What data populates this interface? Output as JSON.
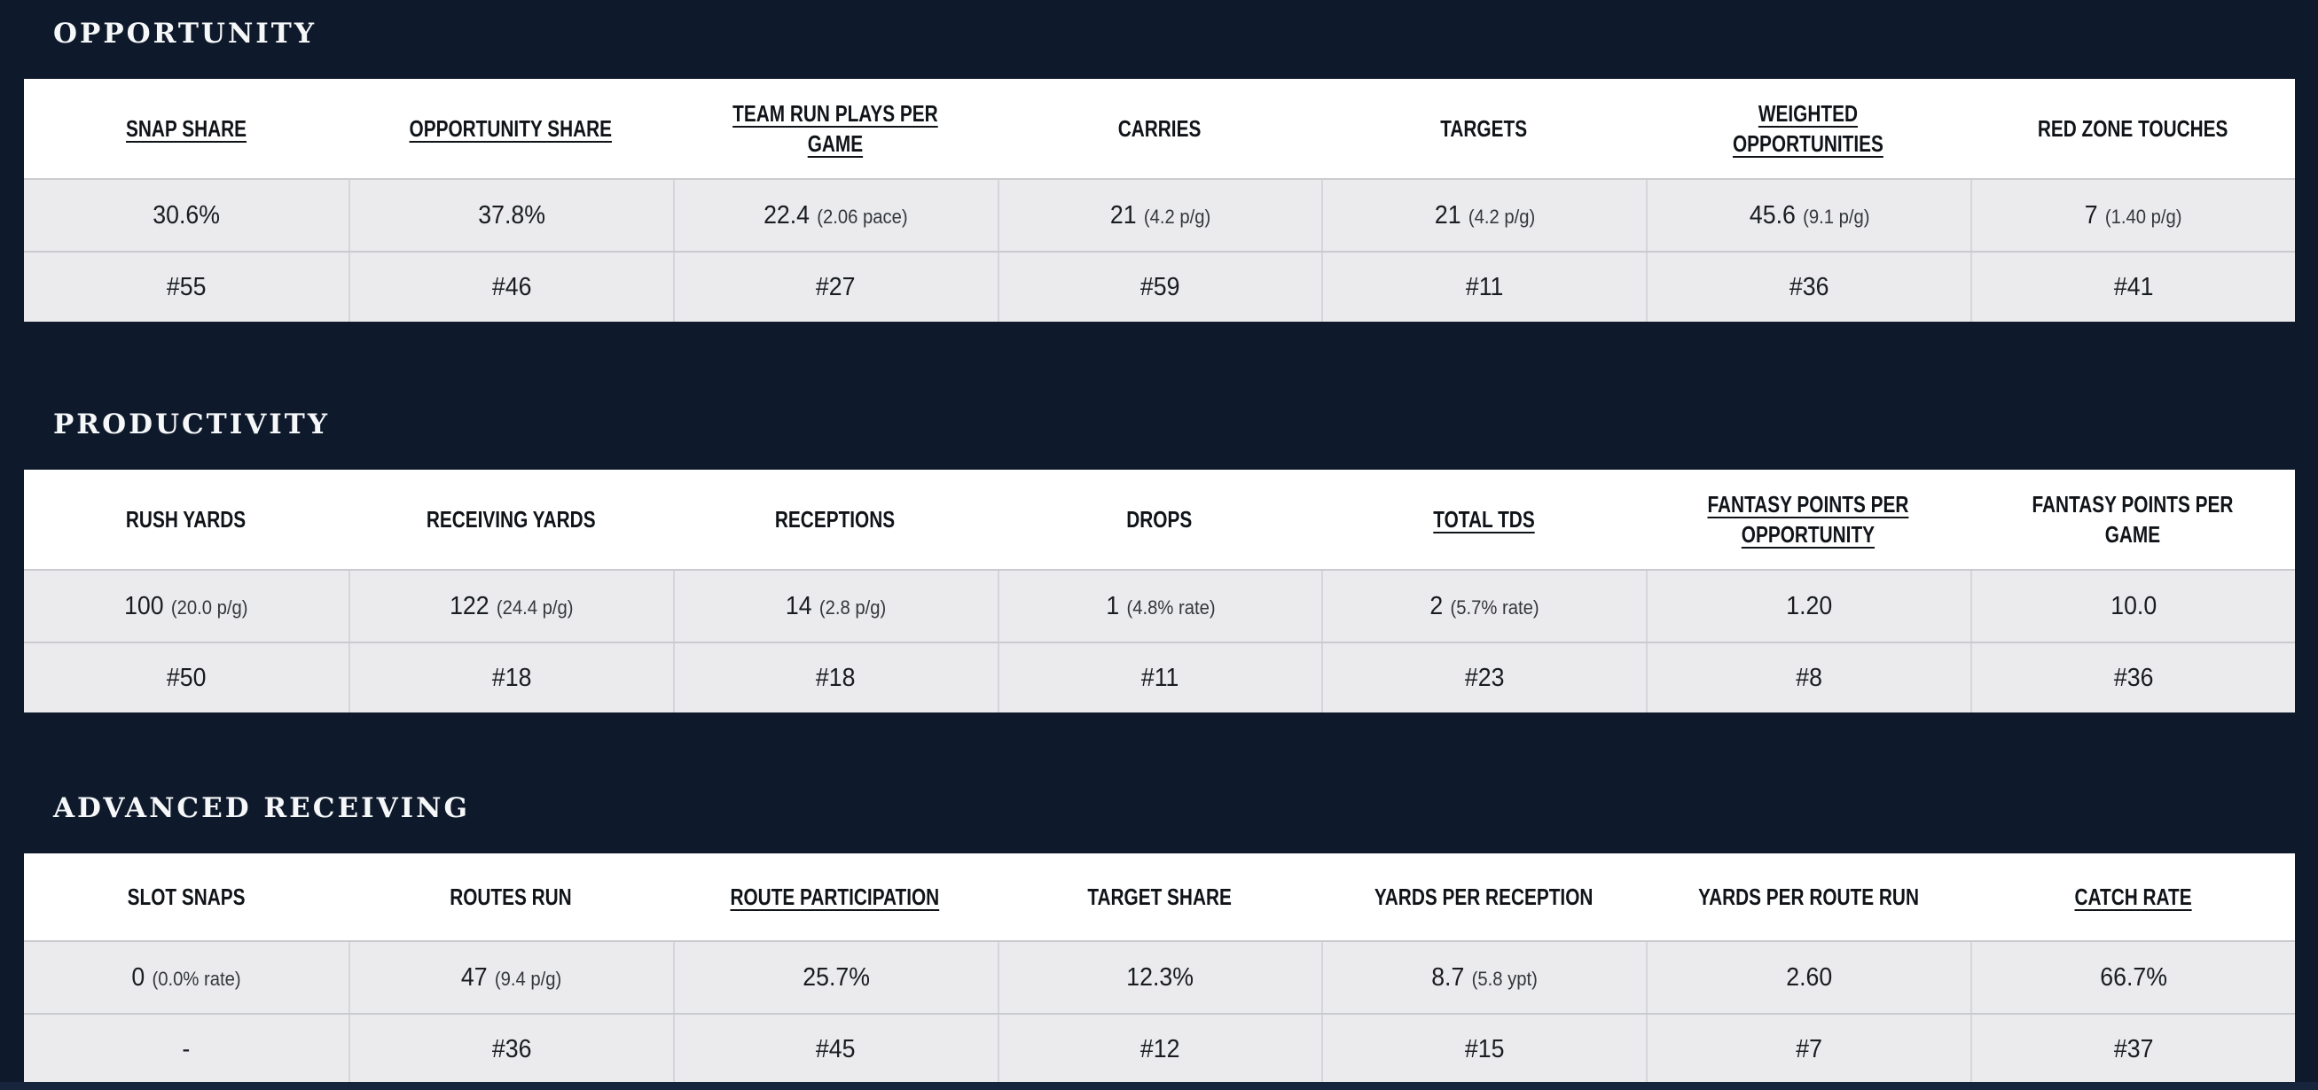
{
  "page": {
    "background_color": "#0e1a2b",
    "table_header_color": "#ffffff",
    "table_cell_color": "#ebebed",
    "grid_line_color": "#c9cbce",
    "title_color": "#f5f7f9",
    "text_color": "#191c20"
  },
  "sections": [
    {
      "title": "OPPORTUNITY",
      "columns": [
        {
          "label": "SNAP SHARE",
          "link": true,
          "value": "30.6%",
          "note": "",
          "rank": "#55"
        },
        {
          "label": "OPPORTUNITY SHARE",
          "link": true,
          "value": "37.8%",
          "note": "",
          "rank": "#46"
        },
        {
          "label": "TEAM RUN PLAYS PER GAME",
          "link": true,
          "value": "22.4",
          "note": "(2.06 pace)",
          "rank": "#27"
        },
        {
          "label": "CARRIES",
          "link": false,
          "value": "21",
          "note": "(4.2 p/g)",
          "rank": "#59"
        },
        {
          "label": "TARGETS",
          "link": false,
          "value": "21",
          "note": "(4.2 p/g)",
          "rank": "#11"
        },
        {
          "label": "WEIGHTED OPPORTUNITIES",
          "link": true,
          "value": "45.6",
          "note": "(9.1 p/g)",
          "rank": "#36"
        },
        {
          "label": "RED ZONE TOUCHES",
          "link": false,
          "value": "7",
          "note": "(1.40 p/g)",
          "rank": "#41"
        }
      ]
    },
    {
      "title": "PRODUCTIVITY",
      "columns": [
        {
          "label": "RUSH YARDS",
          "link": false,
          "value": "100",
          "note": "(20.0 p/g)",
          "rank": "#50"
        },
        {
          "label": "RECEIVING YARDS",
          "link": false,
          "value": "122",
          "note": "(24.4 p/g)",
          "rank": "#18"
        },
        {
          "label": "RECEPTIONS",
          "link": false,
          "value": "14",
          "note": "(2.8 p/g)",
          "rank": "#18"
        },
        {
          "label": "DROPS",
          "link": false,
          "value": "1",
          "note": "(4.8% rate)",
          "rank": "#11"
        },
        {
          "label": "TOTAL TDS",
          "link": true,
          "value": "2",
          "note": "(5.7% rate)",
          "rank": "#23"
        },
        {
          "label": "FANTASY POINTS PER OPPORTUNITY",
          "link": true,
          "value": "1.20",
          "note": "",
          "rank": "#8"
        },
        {
          "label": "FANTASY POINTS PER GAME",
          "link": false,
          "value": "10.0",
          "note": "",
          "rank": "#36"
        }
      ]
    },
    {
      "title": "ADVANCED RECEIVING",
      "columns": [
        {
          "label": "SLOT SNAPS",
          "link": false,
          "value": "0",
          "note": "(0.0% rate)",
          "rank": "-"
        },
        {
          "label": "ROUTES RUN",
          "link": false,
          "value": "47",
          "note": "(9.4 p/g)",
          "rank": "#36"
        },
        {
          "label": "ROUTE PARTICIPATION",
          "link": true,
          "value": "25.7%",
          "note": "",
          "rank": "#45"
        },
        {
          "label": "TARGET SHARE",
          "link": false,
          "value": "12.3%",
          "note": "",
          "rank": "#12"
        },
        {
          "label": "YARDS PER RECEPTION",
          "link": false,
          "value": "8.7",
          "note": "(5.8 ypt)",
          "rank": "#15"
        },
        {
          "label": "YARDS PER ROUTE RUN",
          "link": false,
          "value": "2.60",
          "note": "",
          "rank": "#7"
        },
        {
          "label": "CATCH RATE",
          "link": true,
          "value": "66.7%",
          "note": "",
          "rank": "#37"
        }
      ]
    }
  ]
}
